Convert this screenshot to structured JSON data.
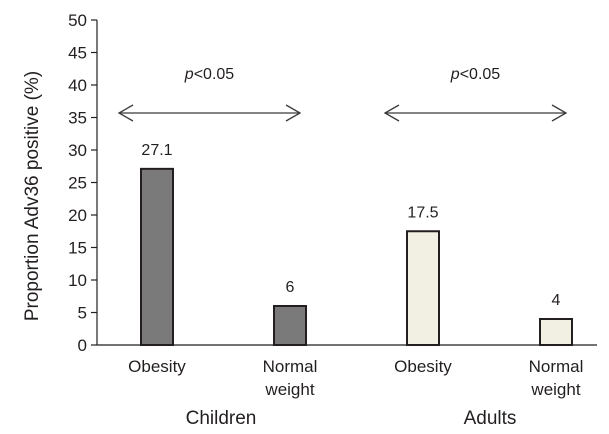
{
  "chart_data": {
    "type": "bar",
    "ylabel": "Proportion Adv36 positive (%)",
    "ylim": [
      0,
      50
    ],
    "yticks": [
      0,
      5,
      10,
      15,
      20,
      25,
      30,
      35,
      40,
      45,
      50
    ],
    "grid": false,
    "groups": [
      {
        "name": "Children",
        "comparison_label": "p<0.05",
        "bars": [
          {
            "category": [
              "Obesity"
            ],
            "value": 27.1,
            "value_label": "27.1",
            "color": "#7a7a7a"
          },
          {
            "category": [
              "Normal",
              "weight"
            ],
            "value": 6,
            "value_label": "6",
            "color": "#7a7a7a"
          }
        ]
      },
      {
        "name": "Adults",
        "comparison_label": "p<0.05",
        "bars": [
          {
            "category": [
              "Obesity"
            ],
            "value": 17.5,
            "value_label": "17.5",
            "color": "#f1f0e2"
          },
          {
            "category": [
              "Normal",
              "weight"
            ],
            "value": 4,
            "value_label": "4",
            "color": "#f1f0e2"
          }
        ]
      }
    ]
  }
}
